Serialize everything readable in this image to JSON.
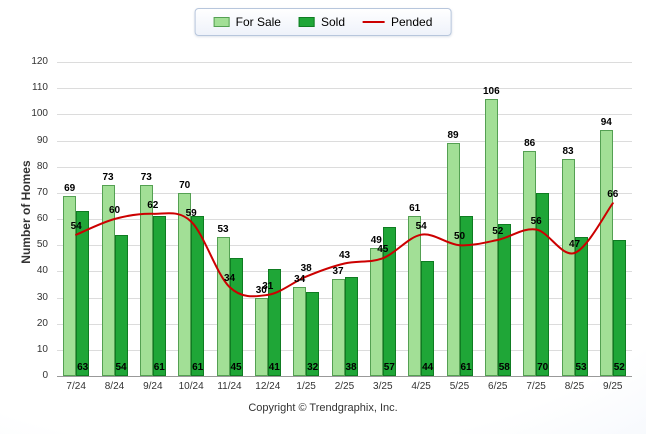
{
  "legend": {
    "for_sale": "For Sale",
    "sold": "Sold",
    "pended": "Pended"
  },
  "y_axis_title": "Number of Homes",
  "footer": "Copyright © Trendgraphix, Inc.",
  "chart_data": {
    "type": "bar",
    "title": "",
    "xlabel": "",
    "ylabel": "Number of Homes",
    "ylim": [
      0,
      120
    ],
    "ytick_step": 10,
    "grid": true,
    "legend_position": "top-center",
    "categories": [
      "7/24",
      "8/24",
      "9/24",
      "10/24",
      "11/24",
      "12/24",
      "1/25",
      "2/25",
      "3/25",
      "4/25",
      "5/25",
      "6/25",
      "7/25",
      "8/25",
      "9/25"
    ],
    "series": [
      {
        "name": "For Sale",
        "type": "bar",
        "color": "#a2df96",
        "border_color": "#54a052",
        "values": [
          69,
          73,
          73,
          70,
          53,
          30,
          34,
          37,
          49,
          61,
          89,
          106,
          86,
          83,
          94
        ]
      },
      {
        "name": "Sold",
        "type": "bar",
        "color": "#1fa637",
        "border_color": "#0f7c22",
        "values": [
          63,
          54,
          61,
          61,
          45,
          41,
          32,
          38,
          57,
          44,
          61,
          58,
          70,
          53,
          52
        ]
      },
      {
        "name": "Pended",
        "type": "line",
        "color": "#cc0000",
        "values": [
          54,
          60,
          62,
          59,
          34,
          31,
          38,
          43,
          45,
          54,
          50,
          52,
          56,
          47,
          66
        ]
      }
    ]
  }
}
